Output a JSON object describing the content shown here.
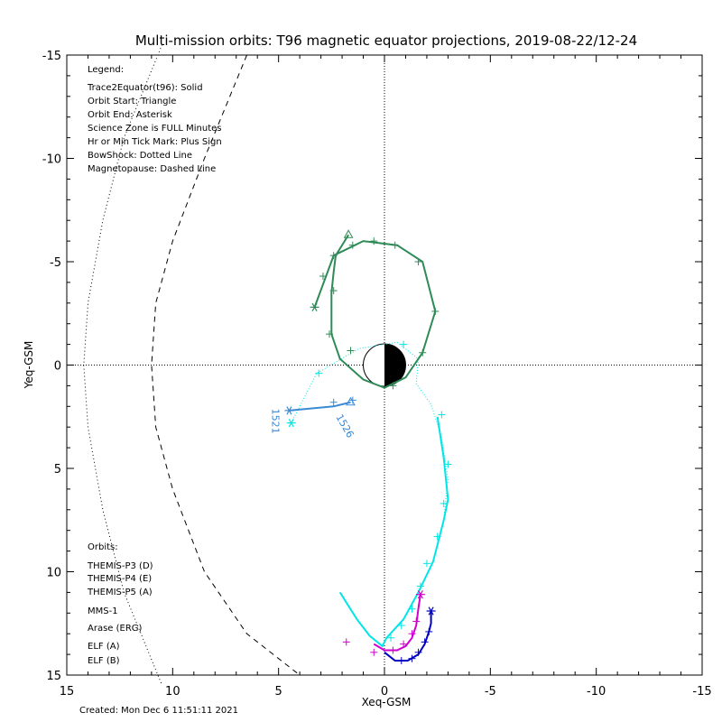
{
  "chart_data": {
    "type": "line",
    "title": "Multi-mission orbits: T96 magnetic equator projections, 2019-08-22/12-24",
    "xlabel": "Xeq-GSM",
    "ylabel": "Yeq-GSM",
    "xlim": [
      15,
      -15
    ],
    "ylim": [
      -15,
      15
    ],
    "xticks": [
      15,
      10,
      5,
      0,
      -5,
      -10,
      -15
    ],
    "yticks": [
      -15,
      -10,
      -5,
      0,
      5,
      10,
      15
    ],
    "xtick_labels": [
      "15",
      "10",
      "5",
      "0",
      "-5",
      "-10",
      "-15"
    ],
    "ytick_labels": [
      "-15",
      "-10",
      "-5",
      "0",
      "5",
      "10",
      "15"
    ],
    "grid": false,
    "legend": {
      "heading": "Legend:",
      "lines": [
        "Trace2Equator(t96): Solid",
        "Orbit Start: Triangle",
        "Orbit End: Asterisk",
        "Science Zone is FULL Minutes",
        "Hr or Min Tick Mark: Plus Sign",
        "BowShock: Dotted Line",
        "Magnetopause: Dashed Line"
      ]
    },
    "orbits_legend": {
      "heading": "Orbits:",
      "items": [
        {
          "label": "THEMIS-P3 (D)",
          "color": "#00e5e5"
        },
        {
          "label": "THEMIS-P4 (E)",
          "color": "#0000c0"
        },
        {
          "label": "THEMIS-P5 (A)",
          "color": "#d000d0"
        },
        {
          "label": "MMS-1",
          "color": "#000000"
        },
        {
          "label": "Arase (ERG)",
          "color": "#2e8b57"
        },
        {
          "label": "ELF (A)",
          "color": "#3a8ad6"
        },
        {
          "label": "ELF (B)",
          "color": "#d01010"
        }
      ]
    },
    "boundaries": {
      "bow_shock": [
        [
          10.5,
          -15.5
        ],
        [
          12.3,
          -11
        ],
        [
          13.3,
          -7
        ],
        [
          14,
          -3
        ],
        [
          14.2,
          0
        ],
        [
          14,
          3
        ],
        [
          13.3,
          7
        ],
        [
          12.3,
          11
        ],
        [
          10.5,
          15.5
        ]
      ],
      "magnetopause": [
        [
          6.5,
          -15
        ],
        [
          8.5,
          -10
        ],
        [
          10,
          -6
        ],
        [
          10.8,
          -3
        ],
        [
          11,
          0
        ],
        [
          10.8,
          3
        ],
        [
          10,
          6
        ],
        [
          8.5,
          10
        ],
        [
          6.5,
          13
        ],
        [
          4,
          15
        ]
      ]
    },
    "series": [
      {
        "name": "THEMIS-P3 (D)",
        "color": "#00e5e5",
        "style": "dotted",
        "points": [
          [
            4.4,
            2.8
          ],
          [
            3.2,
            0.4
          ],
          [
            1.2,
            -0.8
          ],
          [
            -0.6,
            -1.1
          ],
          [
            -1.6,
            -0.3
          ],
          [
            -1.5,
            0.9
          ],
          [
            -2.2,
            1.9
          ],
          [
            -2.7,
            3.5
          ],
          [
            -3,
            5.5
          ],
          [
            -2.8,
            7.5
          ],
          [
            -2.3,
            9.5
          ],
          [
            -1.6,
            11
          ],
          [
            -0.9,
            12.3
          ],
          [
            -0.1,
            13.2
          ],
          [
            0.1,
            13.6
          ],
          [
            0.7,
            13.1
          ],
          [
            1.3,
            12.3
          ],
          [
            2.1,
            11
          ]
        ]
      },
      {
        "name": "THEMIS-P3 (D) solid",
        "color": "#00e5e5",
        "style": "solid",
        "points": [
          [
            -2.5,
            2.5
          ],
          [
            -2.8,
            4.5
          ],
          [
            -3,
            6.5
          ],
          [
            -2.8,
            7.5
          ],
          [
            -2.3,
            9.5
          ],
          [
            -1.6,
            11
          ],
          [
            -0.9,
            12.3
          ],
          [
            -0.1,
            13.2
          ],
          [
            0.1,
            13.6
          ],
          [
            0.7,
            13.1
          ],
          [
            1.3,
            12.3
          ],
          [
            2.1,
            11
          ]
        ]
      },
      {
        "name": "THEMIS-P5 (A)",
        "color": "#d000d0",
        "style": "solid",
        "points": [
          [
            0.5,
            13.5
          ],
          [
            0,
            13.8
          ],
          [
            -0.6,
            13.8
          ],
          [
            -1,
            13.6
          ],
          [
            -1.3,
            13.2
          ],
          [
            -1.5,
            12.6
          ],
          [
            -1.6,
            11.8
          ],
          [
            -1.7,
            11.1
          ]
        ]
      },
      {
        "name": "THEMIS-P4 (E)",
        "color": "#0000c0",
        "style": "solid",
        "points": [
          [
            0,
            13.9
          ],
          [
            -0.5,
            14.3
          ],
          [
            -1.1,
            14.3
          ],
          [
            -1.6,
            14
          ],
          [
            -1.9,
            13.5
          ],
          [
            -2.1,
            12.9
          ],
          [
            -2.2,
            12.5
          ],
          [
            -2.2,
            11.9
          ]
        ]
      },
      {
        "name": "Arase (ERG)",
        "color": "#2e8b57",
        "style": "solid",
        "points": [
          [
            1.7,
            -6.3
          ],
          [
            2.3,
            -5.3
          ],
          [
            2.4,
            -4.5
          ],
          [
            2.5,
            -3.5
          ],
          [
            2.5,
            -1.5
          ],
          [
            2.1,
            -0.3
          ],
          [
            1,
            0.7
          ],
          [
            0,
            1.1
          ],
          [
            -1,
            0.6
          ],
          [
            -1.8,
            -0.6
          ],
          [
            -2.4,
            -2.6
          ],
          [
            -1.8,
            -5
          ],
          [
            -0.6,
            -5.8
          ],
          [
            1,
            -6
          ],
          [
            2.4,
            -5.3
          ],
          [
            3.3,
            -2.8
          ]
        ]
      },
      {
        "name": "ELF (A)",
        "color": "#3a8ad6",
        "style": "solid",
        "points": [
          [
            1.6,
            1.8
          ],
          [
            2.4,
            2
          ],
          [
            4.5,
            2.2
          ]
        ]
      }
    ],
    "start_markers": [
      {
        "series": "Arase (ERG)",
        "x": 1.7,
        "y": -6.3,
        "color": "#2e8b57"
      },
      {
        "series": "ELF (A)",
        "x": 1.6,
        "y": 1.8,
        "color": "#3a8ad6"
      }
    ],
    "end_markers": [
      {
        "series": "Arase (ERG)",
        "x": 3.3,
        "y": -2.8,
        "color": "#2e8b57"
      },
      {
        "series": "THEMIS-P3 (D)",
        "x": 4.4,
        "y": 2.8,
        "color": "#00e5e5"
      },
      {
        "series": "ELF (A)",
        "x": 4.5,
        "y": 2.2,
        "color": "#3a8ad6"
      },
      {
        "series": "THEMIS-P5 (A)",
        "x": -1.7,
        "y": 11.1,
        "color": "#d000d0"
      },
      {
        "series": "THEMIS-P4 (E)",
        "x": -2.2,
        "y": 11.9,
        "color": "#0000c0"
      }
    ],
    "tick_marks": [
      {
        "color": "#2e8b57",
        "points": [
          [
            2.4,
            -5.3
          ],
          [
            1.5,
            -5.8
          ],
          [
            0.5,
            -6
          ],
          [
            -0.5,
            -5.8
          ],
          [
            -1.6,
            -5
          ],
          [
            -2.4,
            -2.6
          ],
          [
            -1.8,
            -0.6
          ],
          [
            -0.4,
            1
          ],
          [
            1.6,
            -0.7
          ],
          [
            2.4,
            -3.6
          ],
          [
            2.6,
            -1.5
          ],
          [
            2.9,
            -4.3
          ]
        ]
      },
      {
        "color": "#00e5e5",
        "points": [
          [
            3.1,
            0.4
          ],
          [
            -0.9,
            -1
          ],
          [
            -2.7,
            2.4
          ],
          [
            -3,
            4.8
          ],
          [
            -2.8,
            6.7
          ],
          [
            -2.5,
            8.3
          ],
          [
            -2,
            9.6
          ],
          [
            -1.7,
            10.7
          ],
          [
            -1.3,
            11.8
          ],
          [
            -0.8,
            12.6
          ],
          [
            -0.3,
            13.2
          ]
        ]
      },
      {
        "color": "#d000d0",
        "points": [
          [
            1.8,
            13.4
          ],
          [
            0.5,
            13.9
          ],
          [
            -0.4,
            13.8
          ],
          [
            -0.9,
            13.5
          ],
          [
            -1.3,
            13
          ],
          [
            -1.5,
            12.4
          ]
        ]
      },
      {
        "color": "#0000c0",
        "points": [
          [
            -0.8,
            14.3
          ],
          [
            -1.3,
            14.2
          ],
          [
            -1.6,
            13.9
          ],
          [
            -1.9,
            13.4
          ],
          [
            -2.1,
            12.9
          ]
        ]
      },
      {
        "color": "#3a8ad6",
        "points": [
          [
            2.4,
            1.8
          ],
          [
            1.5,
            1.7
          ]
        ]
      }
    ],
    "annotations": [
      {
        "text": "1521",
        "x": 5.3,
        "y": 2.1,
        "rotate": 90,
        "color": "#3a8ad6"
      },
      {
        "text": "1526",
        "x": 2.3,
        "y": 2.5,
        "rotate": 60,
        "color": "#3a8ad6"
      }
    ],
    "footer": "Created: Mon Dec  6 11:51:11 2021"
  }
}
